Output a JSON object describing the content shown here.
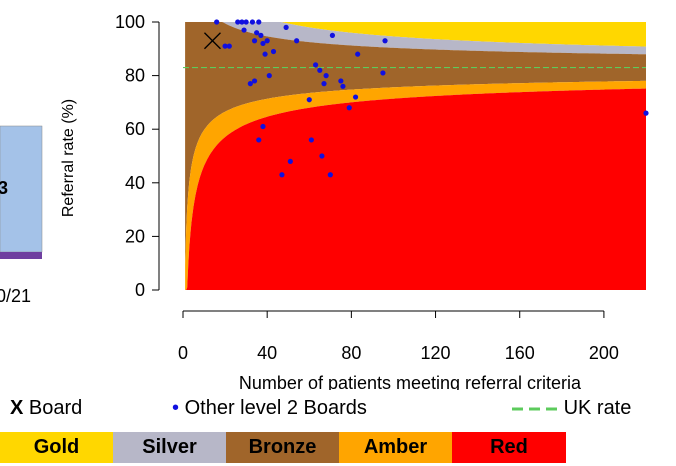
{
  "chart_data": {
    "type": "scatter",
    "xlabel": "Number of patients meeting referral criteria",
    "ylabel": "Referral rate (%)",
    "xlim": [
      0,
      220
    ],
    "ylim": [
      0,
      100
    ],
    "x_ticks": [
      0,
      40,
      80,
      120,
      160,
      200
    ],
    "y_ticks": [
      0,
      20,
      40,
      60,
      80,
      100
    ],
    "uk_rate": 83,
    "board_point": {
      "label": "Board",
      "marker": "X",
      "x": 14,
      "y": 93
    },
    "other_boards": {
      "label": "Other level 2 Boards",
      "points": [
        [
          16,
          100
        ],
        [
          20,
          91
        ],
        [
          22,
          91
        ],
        [
          26,
          100
        ],
        [
          28,
          100
        ],
        [
          30,
          100
        ],
        [
          33,
          100
        ],
        [
          36,
          100
        ],
        [
          29,
          97
        ],
        [
          35,
          96
        ],
        [
          37,
          95
        ],
        [
          34,
          93
        ],
        [
          38,
          92
        ],
        [
          40,
          93
        ],
        [
          43,
          89
        ],
        [
          39,
          88
        ],
        [
          49,
          98
        ],
        [
          54,
          93
        ],
        [
          60,
          71
        ],
        [
          63,
          84
        ],
        [
          65,
          82
        ],
        [
          68,
          80
        ],
        [
          67,
          77
        ],
        [
          71,
          95
        ],
        [
          75,
          78
        ],
        [
          76,
          76
        ],
        [
          79,
          68
        ],
        [
          82,
          72
        ],
        [
          83,
          88
        ],
        [
          95,
          81
        ],
        [
          96,
          93
        ],
        [
          32,
          77
        ],
        [
          34,
          78
        ],
        [
          41,
          80
        ],
        [
          38,
          61
        ],
        [
          36,
          56
        ],
        [
          47,
          43
        ],
        [
          51,
          48
        ],
        [
          61,
          56
        ],
        [
          66,
          50
        ],
        [
          70,
          43
        ],
        [
          220,
          66
        ]
      ]
    },
    "legend": {
      "board_marker": "X",
      "board_label": "Board",
      "others_marker": "•",
      "others_label": "Other level 2 Boards",
      "uk_label": "UK rate"
    },
    "bands": [
      {
        "name": "Gold",
        "color": "#FFD700"
      },
      {
        "name": "Silver",
        "color": "#B7B7C8"
      },
      {
        "name": "Bronze",
        "color": "#A0652A"
      },
      {
        "name": "Amber",
        "color": "#FFA500"
      },
      {
        "name": "Red",
        "color": "#FF0000"
      }
    ],
    "colors": {
      "gold": "#FFD700",
      "silver": "#B7B7C8",
      "bronze": "#A0652A",
      "amber": "#FFA500",
      "red": "#FF0000",
      "points": "#1010E0",
      "uk_line": "#5CCB5C"
    },
    "grid": false
  },
  "clipped_left_panel": {
    "bar_text": "3",
    "axis_text": "0/21",
    "bar_color": "#A4C2E8",
    "bar_base_color": "#6F3FA0"
  }
}
